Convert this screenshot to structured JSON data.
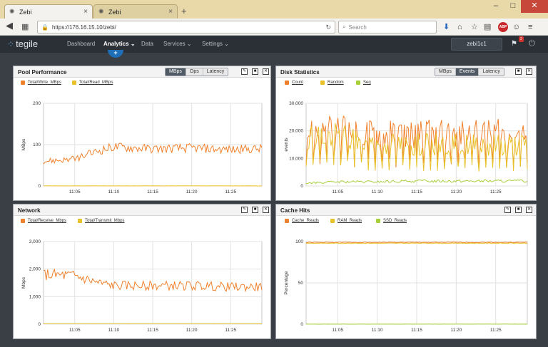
{
  "browser": {
    "tabs": [
      {
        "label": "Zebi",
        "active": true
      },
      {
        "label": "Zebi",
        "active": false
      }
    ],
    "url": "https://176.16.15.10/zebi/",
    "search_placeholder": "Search"
  },
  "app": {
    "logo_text": "tegile",
    "nav": [
      {
        "label": "Dashboard",
        "active": false,
        "dropdown": false
      },
      {
        "label": "Analytics",
        "active": true,
        "dropdown": true
      },
      {
        "label": "Data",
        "active": false,
        "dropdown": false
      },
      {
        "label": "Services",
        "active": false,
        "dropdown": true
      },
      {
        "label": "Settings",
        "active": false,
        "dropdown": true
      }
    ],
    "system_name": "zebi1c1",
    "alert_count": "2"
  },
  "panels": {
    "pool": {
      "title": "Pool Performance",
      "toggles": [
        {
          "label": "MBps",
          "active": true
        },
        {
          "label": "Ops",
          "active": false
        },
        {
          "label": "Latency",
          "active": false
        }
      ],
      "legend": [
        {
          "label": "Total/Write_MBps",
          "color": "#f0812c"
        },
        {
          "label": "Total/Read_MBps",
          "color": "#e8c22a"
        }
      ]
    },
    "disk": {
      "title": "Disk Statistics",
      "toggles": [
        {
          "label": "MBps",
          "active": false
        },
        {
          "label": "Events",
          "active": true
        },
        {
          "label": "Latency",
          "active": false
        }
      ],
      "legend": [
        {
          "label": "Count",
          "color": "#f0812c"
        },
        {
          "label": "Random",
          "color": "#e8c22a"
        },
        {
          "label": "Seq",
          "color": "#a7cf3a"
        }
      ]
    },
    "network": {
      "title": "Network",
      "legend": [
        {
          "label": "Total/Receive_Mbps",
          "color": "#f0812c"
        },
        {
          "label": "Total/Transmit_Mbps",
          "color": "#e8c22a"
        }
      ]
    },
    "cache": {
      "title": "Cache Hits",
      "legend": [
        {
          "label": "Cache_Reads",
          "color": "#f0812c"
        },
        {
          "label": "RAM_Reads",
          "color": "#e8c22a"
        },
        {
          "label": "SSD_Reads",
          "color": "#a7cf3a"
        }
      ]
    }
  },
  "chart_data": [
    {
      "id": "pool",
      "type": "line",
      "ylabel": "MBps",
      "ylim": [
        0,
        200
      ],
      "yticks": [
        "0",
        "100",
        "200"
      ],
      "x_ticks": [
        "11:05",
        "11:10",
        "11:15",
        "11:20",
        "11:25"
      ],
      "series": [
        {
          "name": "Total/Write_MBps",
          "color": "#f0812c",
          "x": [
            "11:01",
            "11:05",
            "11:08",
            "11:10",
            "11:15",
            "11:20",
            "11:25",
            "11:29"
          ],
          "values": [
            60,
            65,
            85,
            95,
            90,
            92,
            88,
            90
          ]
        },
        {
          "name": "Total/Read_MBps",
          "color": "#e8c22a",
          "x": [
            "11:01",
            "11:29"
          ],
          "values": [
            0,
            0
          ]
        }
      ]
    },
    {
      "id": "disk",
      "type": "line",
      "ylabel": "events",
      "ylim": [
        0,
        30000
      ],
      "yticks": [
        "0",
        "10,000",
        "20,000",
        "30,000"
      ],
      "x_ticks": [
        "11:05",
        "11:10",
        "11:15",
        "11:20",
        "11:25"
      ],
      "series": [
        {
          "name": "Count",
          "color": "#f0812c",
          "x": [
            "11:01",
            "11:05",
            "11:10",
            "11:15",
            "11:20",
            "11:25",
            "11:29"
          ],
          "values": [
            19000,
            20000,
            19000,
            19000,
            19000,
            19000,
            19000
          ]
        },
        {
          "name": "Random",
          "color": "#e8c22a",
          "x": [
            "11:01",
            "11:05",
            "11:10",
            "11:15",
            "11:20",
            "11:25",
            "11:29"
          ],
          "values": [
            18000,
            18000,
            15000,
            15000,
            15000,
            15000,
            15000
          ]
        },
        {
          "name": "Seq",
          "color": "#a7cf3a",
          "x": [
            "11:01",
            "11:05",
            "11:10",
            "11:15",
            "11:20",
            "11:25",
            "11:29"
          ],
          "values": [
            1000,
            1500,
            1500,
            1800,
            1800,
            1800,
            1800
          ]
        }
      ]
    },
    {
      "id": "network",
      "type": "line",
      "ylabel": "Mbps",
      "ylim": [
        0,
        3000
      ],
      "yticks": [
        "0",
        "1,000",
        "2,000",
        "3,000"
      ],
      "x_ticks": [
        "11:05",
        "11:10",
        "11:15",
        "11:20",
        "11:25"
      ],
      "series": [
        {
          "name": "Total/Receive_Mbps",
          "color": "#f0812c",
          "x": [
            "11:01",
            "11:05",
            "11:08",
            "11:10",
            "11:15",
            "11:20",
            "11:25",
            "11:29"
          ],
          "values": [
            1800,
            1750,
            1500,
            1400,
            1400,
            1400,
            1350,
            1350
          ]
        },
        {
          "name": "Total/Transmit_Mbps",
          "color": "#e8c22a",
          "x": [
            "11:01",
            "11:29"
          ],
          "values": [
            20,
            20
          ]
        }
      ]
    },
    {
      "id": "cache",
      "type": "line",
      "ylabel": "Percentage",
      "ylim": [
        0,
        100
      ],
      "yticks": [
        "0",
        "50",
        "100"
      ],
      "x_ticks": [
        "11:05",
        "11:10",
        "11:15",
        "11:20",
        "11:25"
      ],
      "series": [
        {
          "name": "Cache_Reads",
          "color": "#f0812c",
          "x": [
            "11:01",
            "11:29"
          ],
          "values": [
            99,
            99
          ]
        },
        {
          "name": "RAM_Reads",
          "color": "#e8c22a",
          "x": [
            "11:01",
            "11:29"
          ],
          "values": [
            98,
            98
          ]
        },
        {
          "name": "SSD_Reads",
          "color": "#a7cf3a",
          "x": [
            "11:01",
            "11:29"
          ],
          "values": [
            0,
            0
          ]
        }
      ]
    }
  ]
}
